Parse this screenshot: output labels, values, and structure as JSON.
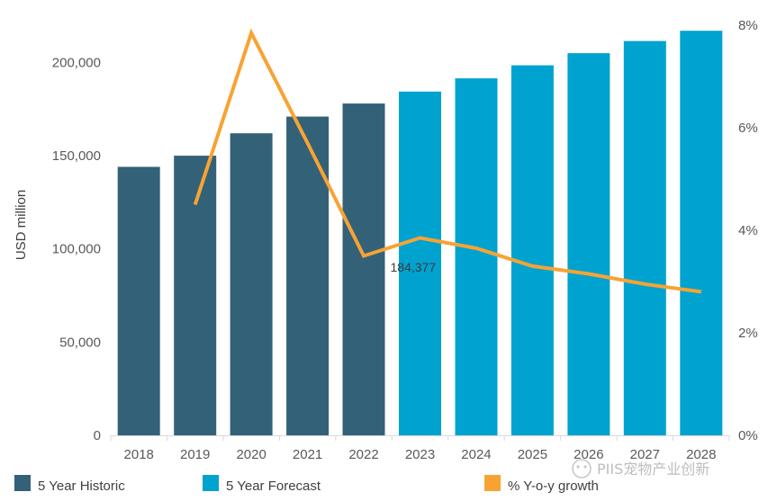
{
  "chart_data": {
    "type": "bar",
    "categories": [
      "2018",
      "2019",
      "2020",
      "2021",
      "2022",
      "2023",
      "2024",
      "2025",
      "2026",
      "2027",
      "2028"
    ],
    "series": [
      {
        "name": "5 Year Historic",
        "type": "bar",
        "axis": "left",
        "values": [
          144000,
          150000,
          162000,
          171000,
          178000,
          null,
          null,
          null,
          null,
          null,
          null
        ],
        "color": "#336178"
      },
      {
        "name": "5 Year Forecast",
        "type": "bar",
        "axis": "left",
        "values": [
          null,
          null,
          null,
          null,
          null,
          184377,
          191500,
          198500,
          205000,
          211500,
          217000
        ],
        "color": "#00A3CF"
      },
      {
        "name": "% Y-o-y growth",
        "type": "line",
        "axis": "right",
        "values": [
          null,
          4.5,
          7.85,
          5.7,
          3.5,
          3.85,
          3.65,
          3.3,
          3.15,
          2.95,
          2.8
        ],
        "color": "#F7A334"
      }
    ],
    "ylabel": "USD million",
    "ylim": [
      0,
      220000
    ],
    "y_ticks": [
      "0",
      "50,000",
      "100,000",
      "150,000",
      "200,000"
    ],
    "y_tick_values": [
      0,
      50000,
      100000,
      150000,
      200000
    ],
    "y2lim": [
      0,
      8
    ],
    "y2_ticks": [
      "0%",
      "2%",
      "4%",
      "6%",
      "8%"
    ],
    "y2_tick_values": [
      0,
      2,
      4,
      6,
      8
    ],
    "grid": false,
    "legend_position": "bottom",
    "annotations": [
      {
        "text": "184,377",
        "category": "2023",
        "value": 184377
      }
    ]
  },
  "watermark": "PIIS宠物产业创新"
}
